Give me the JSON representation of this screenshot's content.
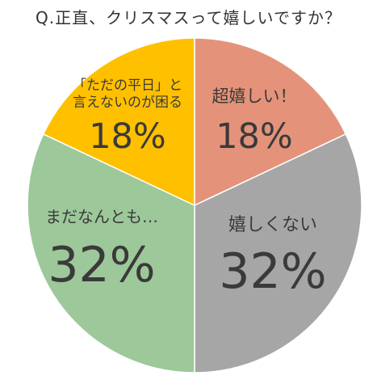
{
  "chart_data": {
    "type": "pie",
    "title": "Q.正直、クリスマスって嬉しいですか？",
    "start_angle_deg": 0,
    "direction": "clockwise",
    "slices": [
      {
        "label": "超嬉しい！",
        "label_lines": [
          "超嬉しい！"
        ],
        "value": 18,
        "value_label": "18%",
        "color": "#E4937A"
      },
      {
        "label": "嬉しくない",
        "label_lines": [
          "嬉しくない"
        ],
        "value": 32,
        "value_label": "32%",
        "color": "#A6A6A6"
      },
      {
        "label": "まだなんとも…",
        "label_lines": [
          "まだなんとも…"
        ],
        "value": 32,
        "value_label": "32%",
        "color": "#9DC89A"
      },
      {
        "label": "「ただの平日」と言えないのが困る",
        "label_lines": [
          "「ただの平日」と",
          "言えないのが困る"
        ],
        "value": 18,
        "value_label": "18%",
        "color": "#FFC000"
      }
    ]
  }
}
